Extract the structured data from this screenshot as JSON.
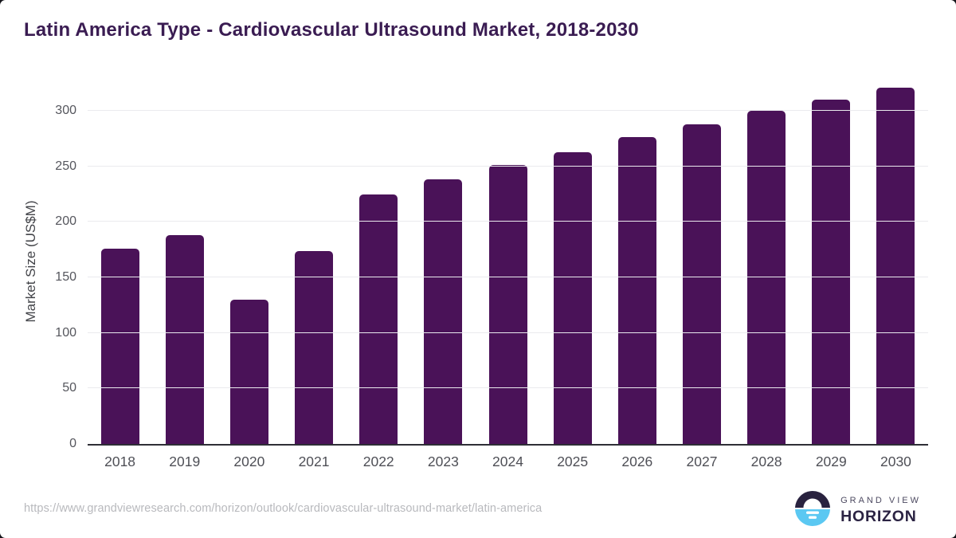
{
  "header": {
    "title": "Latin America Type - Cardiovascular Ultrasound Market, 2018-2030",
    "title_color": "#3A1C52"
  },
  "chart_data": {
    "type": "bar",
    "title": "Latin America Type - Cardiovascular Ultrasound Market, 2018-2030",
    "categories": [
      "2018",
      "2019",
      "2020",
      "2021",
      "2022",
      "2023",
      "2024",
      "2025",
      "2026",
      "2027",
      "2028",
      "2029",
      "2030"
    ],
    "values": [
      176,
      188,
      130,
      174,
      225,
      238,
      251,
      263,
      276,
      288,
      300,
      310,
      321
    ],
    "xlabel": "",
    "ylabel": "Market Size (US$M)",
    "ylim": [
      0,
      328
    ],
    "yticks": [
      0,
      50,
      100,
      150,
      200,
      250,
      300
    ],
    "grid": true,
    "legend": false,
    "bar_color": "#4A1258",
    "gridline_color": "#EAEAEE",
    "axis_line_color": "#2E2E36",
    "tick_label_color": "#55565D"
  },
  "footer": {
    "source_url": "https://www.grandviewresearch.com/horizon/outlook/cardiovascular-ultrasound-market/latin-america",
    "logo": {
      "brand_line1": "GRAND VIEW",
      "brand_line2": "HORIZON",
      "mark_top_color": "#29223F",
      "mark_bottom_color": "#5BC8F2"
    }
  }
}
